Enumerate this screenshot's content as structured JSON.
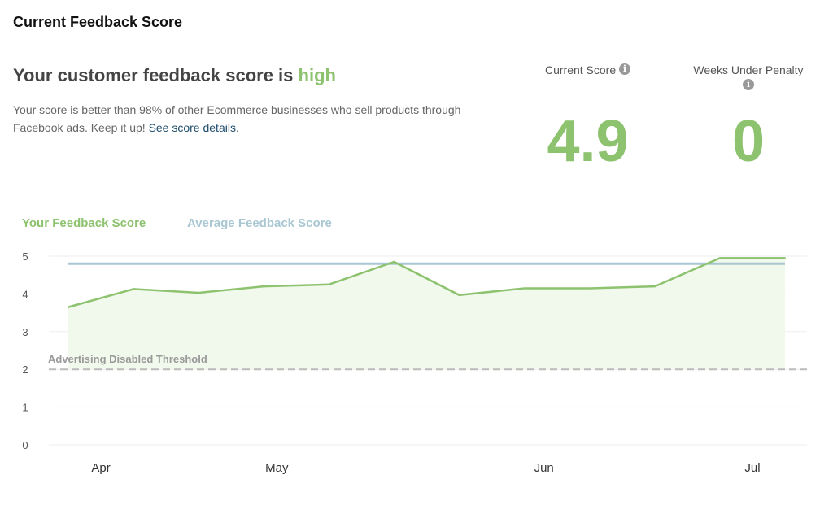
{
  "title": "Current Feedback Score",
  "headline": {
    "prefix": "Your customer feedback score is ",
    "level": "high"
  },
  "description": {
    "text": "Your score is better than 98% of other Ecommerce businesses who sell products through Facebook ads. Keep it up! ",
    "link": "See score details."
  },
  "stats": {
    "current_score_label": "Current Score",
    "current_score": "4.9",
    "penalty_label": "Weeks Under Penalty",
    "penalty": "0"
  },
  "colors": {
    "accent": "#8dc26f",
    "average": "#a9c7d2",
    "threshold": "#bbbbbb"
  },
  "chart_data": {
    "type": "area",
    "legend_placement": "top-left",
    "series": [
      {
        "name": "Your Feedback Score",
        "color": "#8dc26f",
        "values": [
          3.65,
          4.13,
          4.03,
          4.2,
          4.25,
          4.85,
          3.97,
          4.15,
          4.15,
          4.2,
          4.95,
          4.95
        ]
      },
      {
        "name": "Average Feedback Score",
        "color": "#a9c7d2",
        "values": [
          4.8,
          4.8,
          4.8,
          4.8,
          4.8,
          4.8,
          4.8,
          4.8,
          4.8,
          4.8,
          4.8,
          4.8
        ]
      }
    ],
    "threshold": {
      "label": "Advertising Disabled Threshold",
      "value": 2
    },
    "ylim": [
      0,
      5
    ],
    "yticks": [
      0,
      1,
      2,
      3,
      4,
      5
    ],
    "xticks": [
      {
        "label": "Apr",
        "at": 0.5
      },
      {
        "label": "May",
        "at": 3.2
      },
      {
        "label": "Jun",
        "at": 7.3
      },
      {
        "label": "Jul",
        "at": 10.5
      }
    ],
    "grid": true
  }
}
